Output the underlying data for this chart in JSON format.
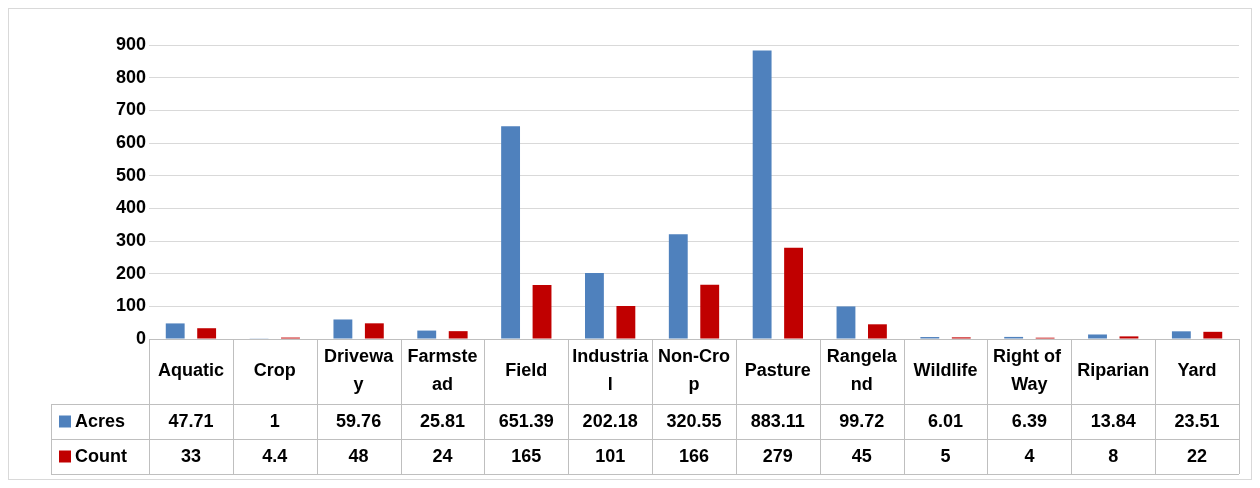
{
  "chart_data": {
    "type": "bar",
    "categories": [
      "Aquatic",
      "Crop",
      "Driveway",
      "Farmstead",
      "Field",
      "Industrial",
      "Non-Crop",
      "Pasture",
      "Rangeland",
      "Wildlife",
      "Right of Way",
      "Riparian",
      "Yard"
    ],
    "series": [
      {
        "name": "Acres",
        "color": "#4f81bd",
        "values": [
          47.71,
          1,
          59.76,
          25.81,
          651.39,
          202.18,
          320.55,
          883.11,
          99.72,
          6.01,
          6.39,
          13.84,
          23.51
        ]
      },
      {
        "name": "Count",
        "color": "#c00000",
        "values": [
          33,
          4.4,
          48,
          24,
          165,
          101,
          166,
          279,
          45,
          5,
          4,
          8,
          22
        ]
      }
    ],
    "ylim": [
      0,
      900
    ],
    "yticks": [
      0,
      100,
      200,
      300,
      400,
      500,
      600,
      700,
      800,
      900
    ],
    "grid": "y",
    "legend": "bottom left",
    "data_labels": true
  }
}
